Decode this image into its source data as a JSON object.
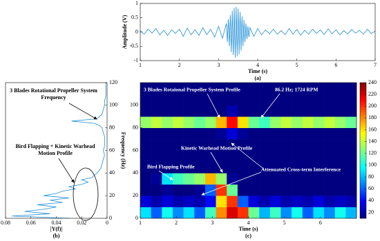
{
  "chart_data": [
    {
      "type": "line",
      "caption": "(a)",
      "xlabel": "Time (s)",
      "ylabel": "Amplitude (V)",
      "color": "#1f8fd6",
      "x": [
        1.0,
        1.1,
        1.2,
        1.3,
        1.4,
        1.5,
        1.6,
        1.7,
        1.8,
        1.9,
        2.0,
        2.1,
        2.2,
        2.3,
        2.4,
        2.5,
        2.6,
        2.7,
        2.8,
        2.9,
        3.0,
        3.1,
        3.2,
        3.225,
        3.25,
        3.275,
        3.3,
        3.325,
        3.35,
        3.375,
        3.4,
        3.425,
        3.45,
        3.475,
        3.5,
        3.525,
        3.55,
        3.575,
        3.6,
        3.625,
        3.65,
        3.675,
        3.7,
        3.725,
        3.75,
        3.775,
        3.8,
        3.9,
        4.0,
        4.1,
        4.2,
        4.3,
        4.4,
        4.5,
        4.6,
        4.7,
        4.8,
        4.9,
        5.0,
        5.1,
        5.2,
        5.3,
        5.4,
        5.5,
        5.6,
        5.7,
        5.8,
        5.9,
        6.0,
        6.1,
        6.2,
        6.3,
        6.4,
        6.5,
        6.6,
        6.7,
        6.8,
        6.9,
        7.0
      ],
      "values": [
        0.05,
        -0.08,
        0.1,
        -0.04,
        0.12,
        -0.1,
        0.06,
        -0.12,
        0.08,
        -0.05,
        0.1,
        -0.15,
        0.14,
        -0.1,
        0.08,
        -0.12,
        0.15,
        -0.09,
        0.1,
        -0.18,
        0.2,
        -0.22,
        0.3,
        -0.35,
        0.45,
        -0.5,
        0.6,
        -0.7,
        0.75,
        -0.8,
        0.85,
        -0.9,
        0.88,
        -0.85,
        0.82,
        -0.78,
        0.7,
        -0.65,
        0.55,
        -0.5,
        0.42,
        -0.35,
        0.3,
        -0.25,
        0.2,
        -0.18,
        0.15,
        -0.15,
        0.12,
        -0.1,
        0.08,
        -0.06,
        0.1,
        -0.08,
        0.05,
        -0.1,
        0.12,
        -0.07,
        0.09,
        -0.11,
        0.06,
        -0.08,
        0.1,
        -0.05,
        0.07,
        -0.09,
        0.11,
        -0.06,
        0.08,
        -0.1,
        0.05,
        -0.07,
        0.09,
        -0.04,
        0.06,
        -0.08,
        0.1,
        -0.05,
        0.03
      ],
      "xlim": [
        1,
        7
      ],
      "xticks": [
        1,
        2,
        3,
        4,
        5,
        6,
        7
      ],
      "ylim": [
        -1,
        1
      ],
      "yticks": [
        -1,
        -0.5,
        0,
        0.5,
        1
      ]
    },
    {
      "type": "line",
      "orientation": "horizontal",
      "caption": "(b)",
      "xlabel": "|Y(f)|",
      "ylabel": "Frequency (Hz)",
      "color": "#1f8fd6",
      "annotations": [
        "3 Blades Rotational Propeller System Frequency",
        "Bird Flapping + Kinetic Warhead Motion Profile"
      ],
      "y": [
        0,
        2,
        4,
        6,
        8,
        10,
        12,
        14,
        16,
        18,
        20,
        22,
        24,
        26,
        28,
        30,
        32,
        34,
        36,
        38,
        40,
        44,
        48,
        52,
        56,
        60,
        64,
        68,
        72,
        76,
        80,
        82,
        84,
        86,
        88,
        92,
        96,
        100,
        104,
        108,
        112,
        116,
        120
      ],
      "values": [
        0.03,
        0.075,
        0.045,
        0.065,
        0.05,
        0.04,
        0.055,
        0.035,
        0.045,
        0.03,
        0.05,
        0.04,
        0.035,
        0.025,
        0.03,
        0.02,
        0.015,
        0.02,
        0.012,
        0.01,
        0.008,
        0.005,
        0.004,
        0.003,
        0.002,
        0.003,
        0.002,
        0.002,
        0.002,
        0.003,
        0.004,
        0.006,
        0.01,
        0.028,
        0.008,
        0.004,
        0.003,
        0.002,
        0.002,
        0.001,
        0.001,
        0.001,
        0.001
      ],
      "xlim": [
        0.08,
        0
      ],
      "xticks": [
        0.08,
        0.06,
        0.04,
        0.02,
        0
      ],
      "ylim": [
        0,
        120
      ],
      "yticks": [
        0,
        20,
        40,
        60,
        80,
        100,
        120
      ]
    },
    {
      "type": "heatmap",
      "caption": "(c)",
      "xlabel": "Time (s)",
      "colormap": "jet",
      "annotations": [
        "3 Blades Rotaional Propeller System Profile",
        "86.2 Hz; 1724 RPM",
        "Kinetic Warhead Motion Profile",
        "Bird Flapping Profile",
        "Attenuated Cross-term Interference"
      ],
      "xlim": [
        1,
        7
      ],
      "xticks": [
        1,
        2,
        3,
        4,
        5,
        6
      ],
      "ylim": [
        0,
        120
      ],
      "yticks": [
        0,
        20,
        40,
        60,
        80,
        100
      ],
      "zlim": [
        10,
        240
      ],
      "zticks": [
        20,
        40,
        60,
        80,
        100,
        120,
        140,
        160,
        180,
        200,
        220,
        240
      ],
      "z": [
        [
          90,
          60,
          100,
          70,
          90,
          60,
          110,
          180,
          220,
          200,
          120,
          80,
          110,
          70,
          100,
          60,
          90,
          70,
          100,
          80
        ],
        [
          30,
          20,
          30,
          20,
          25,
          20,
          40,
          160,
          200,
          60,
          30,
          20,
          30,
          20,
          25,
          20,
          30,
          20,
          25,
          20
        ],
        [
          10,
          10,
          15,
          10,
          10,
          15,
          60,
          200,
          120,
          10,
          10,
          10,
          10,
          10,
          10,
          10,
          10,
          10,
          10,
          10
        ],
        [
          10,
          15,
          90,
          110,
          120,
          130,
          170,
          130,
          15,
          10,
          10,
          10,
          10,
          10,
          10,
          10,
          10,
          10,
          10,
          10
        ],
        [
          10,
          10,
          10,
          10,
          10,
          10,
          10,
          10,
          10,
          10,
          10,
          10,
          10,
          10,
          10,
          10,
          10,
          10,
          10,
          10
        ],
        [
          10,
          10,
          10,
          10,
          10,
          10,
          10,
          10,
          10,
          10,
          10,
          10,
          10,
          10,
          10,
          10,
          10,
          10,
          10,
          10
        ],
        [
          10,
          10,
          10,
          10,
          10,
          10,
          10,
          10,
          10,
          10,
          10,
          10,
          10,
          10,
          10,
          10,
          10,
          10,
          10,
          10
        ],
        [
          10,
          10,
          10,
          10,
          10,
          10,
          10,
          15,
          30,
          15,
          10,
          10,
          10,
          10,
          10,
          10,
          10,
          10,
          10,
          10
        ],
        [
          130,
          140,
          130,
          140,
          130,
          120,
          130,
          170,
          210,
          160,
          120,
          110,
          130,
          140,
          130,
          140,
          130,
          140,
          130,
          120
        ],
        [
          10,
          10,
          10,
          10,
          10,
          10,
          10,
          10,
          20,
          10,
          10,
          10,
          10,
          10,
          10,
          10,
          10,
          10,
          10,
          10
        ],
        [
          10,
          10,
          10,
          10,
          10,
          10,
          10,
          10,
          10,
          10,
          10,
          10,
          10,
          10,
          10,
          10,
          10,
          10,
          10,
          10
        ],
        [
          10,
          10,
          10,
          10,
          10,
          10,
          10,
          10,
          10,
          10,
          10,
          10,
          10,
          10,
          10,
          10,
          10,
          10,
          10,
          10
        ]
      ]
    }
  ]
}
